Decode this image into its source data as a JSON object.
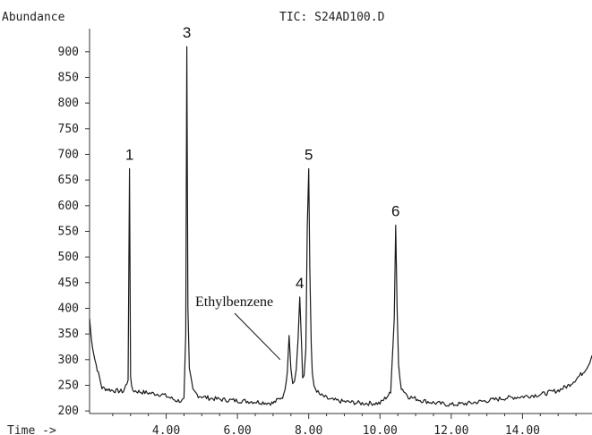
{
  "chart_data": {
    "type": "line",
    "title": "TIC: S24AD100.D",
    "ylabel": "Abundance",
    "xlabel": "Time ->",
    "xlim": [
      1.85,
      15.95
    ],
    "ylim": [
      195,
      945
    ],
    "x_ticks": [
      "4.00",
      "6.00",
      "8.00",
      "10.00",
      "12.00",
      "14.00"
    ],
    "y_ticks": [
      "900",
      "850",
      "800",
      "750",
      "700",
      "650",
      "600",
      "550",
      "500",
      "450",
      "400",
      "350",
      "300",
      "250",
      "200"
    ],
    "series": [
      {
        "x": [
          1.85,
          1.9,
          2.0,
          2.2,
          2.5,
          2.8,
          2.93,
          2.97,
          3.0,
          3.03,
          3.07,
          3.2,
          3.5,
          3.9,
          4.3,
          4.45,
          4.5,
          4.55,
          4.58,
          4.61,
          4.65,
          4.75,
          4.9,
          5.2,
          5.6,
          6.0,
          6.5,
          7.0,
          7.3,
          7.4,
          7.45,
          7.5,
          7.55,
          7.6,
          7.65,
          7.7,
          7.75,
          7.8,
          7.83,
          7.87,
          7.92,
          7.96,
          8.0,
          8.03,
          8.07,
          8.1,
          8.15,
          8.3,
          8.6,
          9.0,
          9.5,
          10.0,
          10.3,
          10.4,
          10.44,
          10.48,
          10.52,
          10.6,
          10.8,
          11.2,
          11.6,
          12.0,
          12.5,
          13.0,
          13.5,
          14.0,
          14.5,
          15.0,
          15.3,
          15.5,
          15.7,
          15.85,
          15.95
        ],
        "y": [
          380,
          340,
          300,
          245,
          240,
          238,
          260,
          672,
          270,
          245,
          240,
          238,
          235,
          232,
          220,
          220,
          225,
          350,
          910,
          400,
          280,
          240,
          230,
          225,
          222,
          220,
          218,
          215,
          230,
          275,
          347,
          285,
          255,
          262,
          280,
          340,
          422,
          330,
          265,
          270,
          320,
          560,
          672,
          480,
          330,
          270,
          248,
          232,
          222,
          218,
          215,
          215,
          235,
          380,
          562,
          400,
          290,
          245,
          228,
          220,
          215,
          212,
          215,
          220,
          225,
          228,
          232,
          240,
          250,
          262,
          275,
          290,
          308
        ]
      }
    ],
    "peak_labels": [
      {
        "label": "1",
        "x": 2.97,
        "y": 672
      },
      {
        "label": "3",
        "x": 4.58,
        "y": 910
      },
      {
        "label": "4",
        "x": 7.75,
        "y": 422
      },
      {
        "label": "5",
        "x": 8.0,
        "y": 672
      },
      {
        "label": "6",
        "x": 10.44,
        "y": 562
      }
    ],
    "annotation": {
      "text": "Ethylbenzene",
      "target_x": 7.45,
      "target_y": 300
    }
  }
}
